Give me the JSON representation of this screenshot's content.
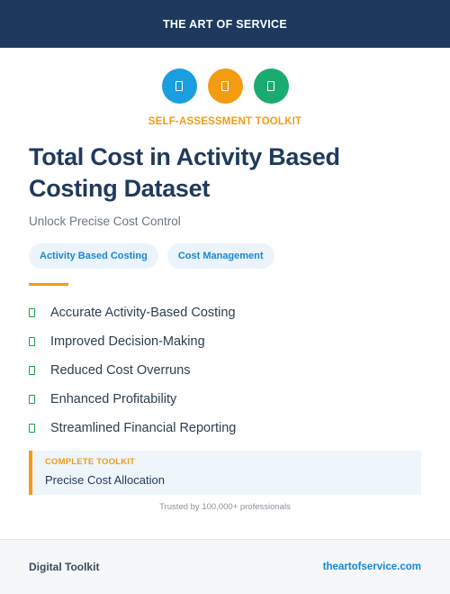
{
  "header": {
    "brand": "THE ART OF SERVICE"
  },
  "icons": [
    {
      "name": "document-icon",
      "color": "#1a9ee0"
    },
    {
      "name": "chart-icon",
      "color": "#f39c12"
    },
    {
      "name": "check-icon",
      "color": "#1aab6e"
    }
  ],
  "kicker": "SELF-ASSESSMENT TOOLKIT",
  "title": "Total Cost in Activity Based Costing Dataset",
  "subtitle": "Unlock Precise Cost Control",
  "tags": [
    "Activity Based Costing",
    "Cost Management"
  ],
  "features": [
    "Accurate Activity-Based Costing",
    "Improved Decision-Making",
    "Reduced Cost Overruns",
    "Enhanced Profitability",
    "Streamlined Financial Reporting"
  ],
  "callout": {
    "kicker": "COMPLETE TOOLKIT",
    "text": "Precise Cost Allocation"
  },
  "trusted": "Trusted by 100,000+ professionals",
  "footer": {
    "left": "Digital Toolkit",
    "right": "theartofservice.com"
  },
  "colors": {
    "navy": "#1d3a5e",
    "accent": "#f39c12",
    "link": "#1787d6",
    "success": "#16a34a"
  }
}
